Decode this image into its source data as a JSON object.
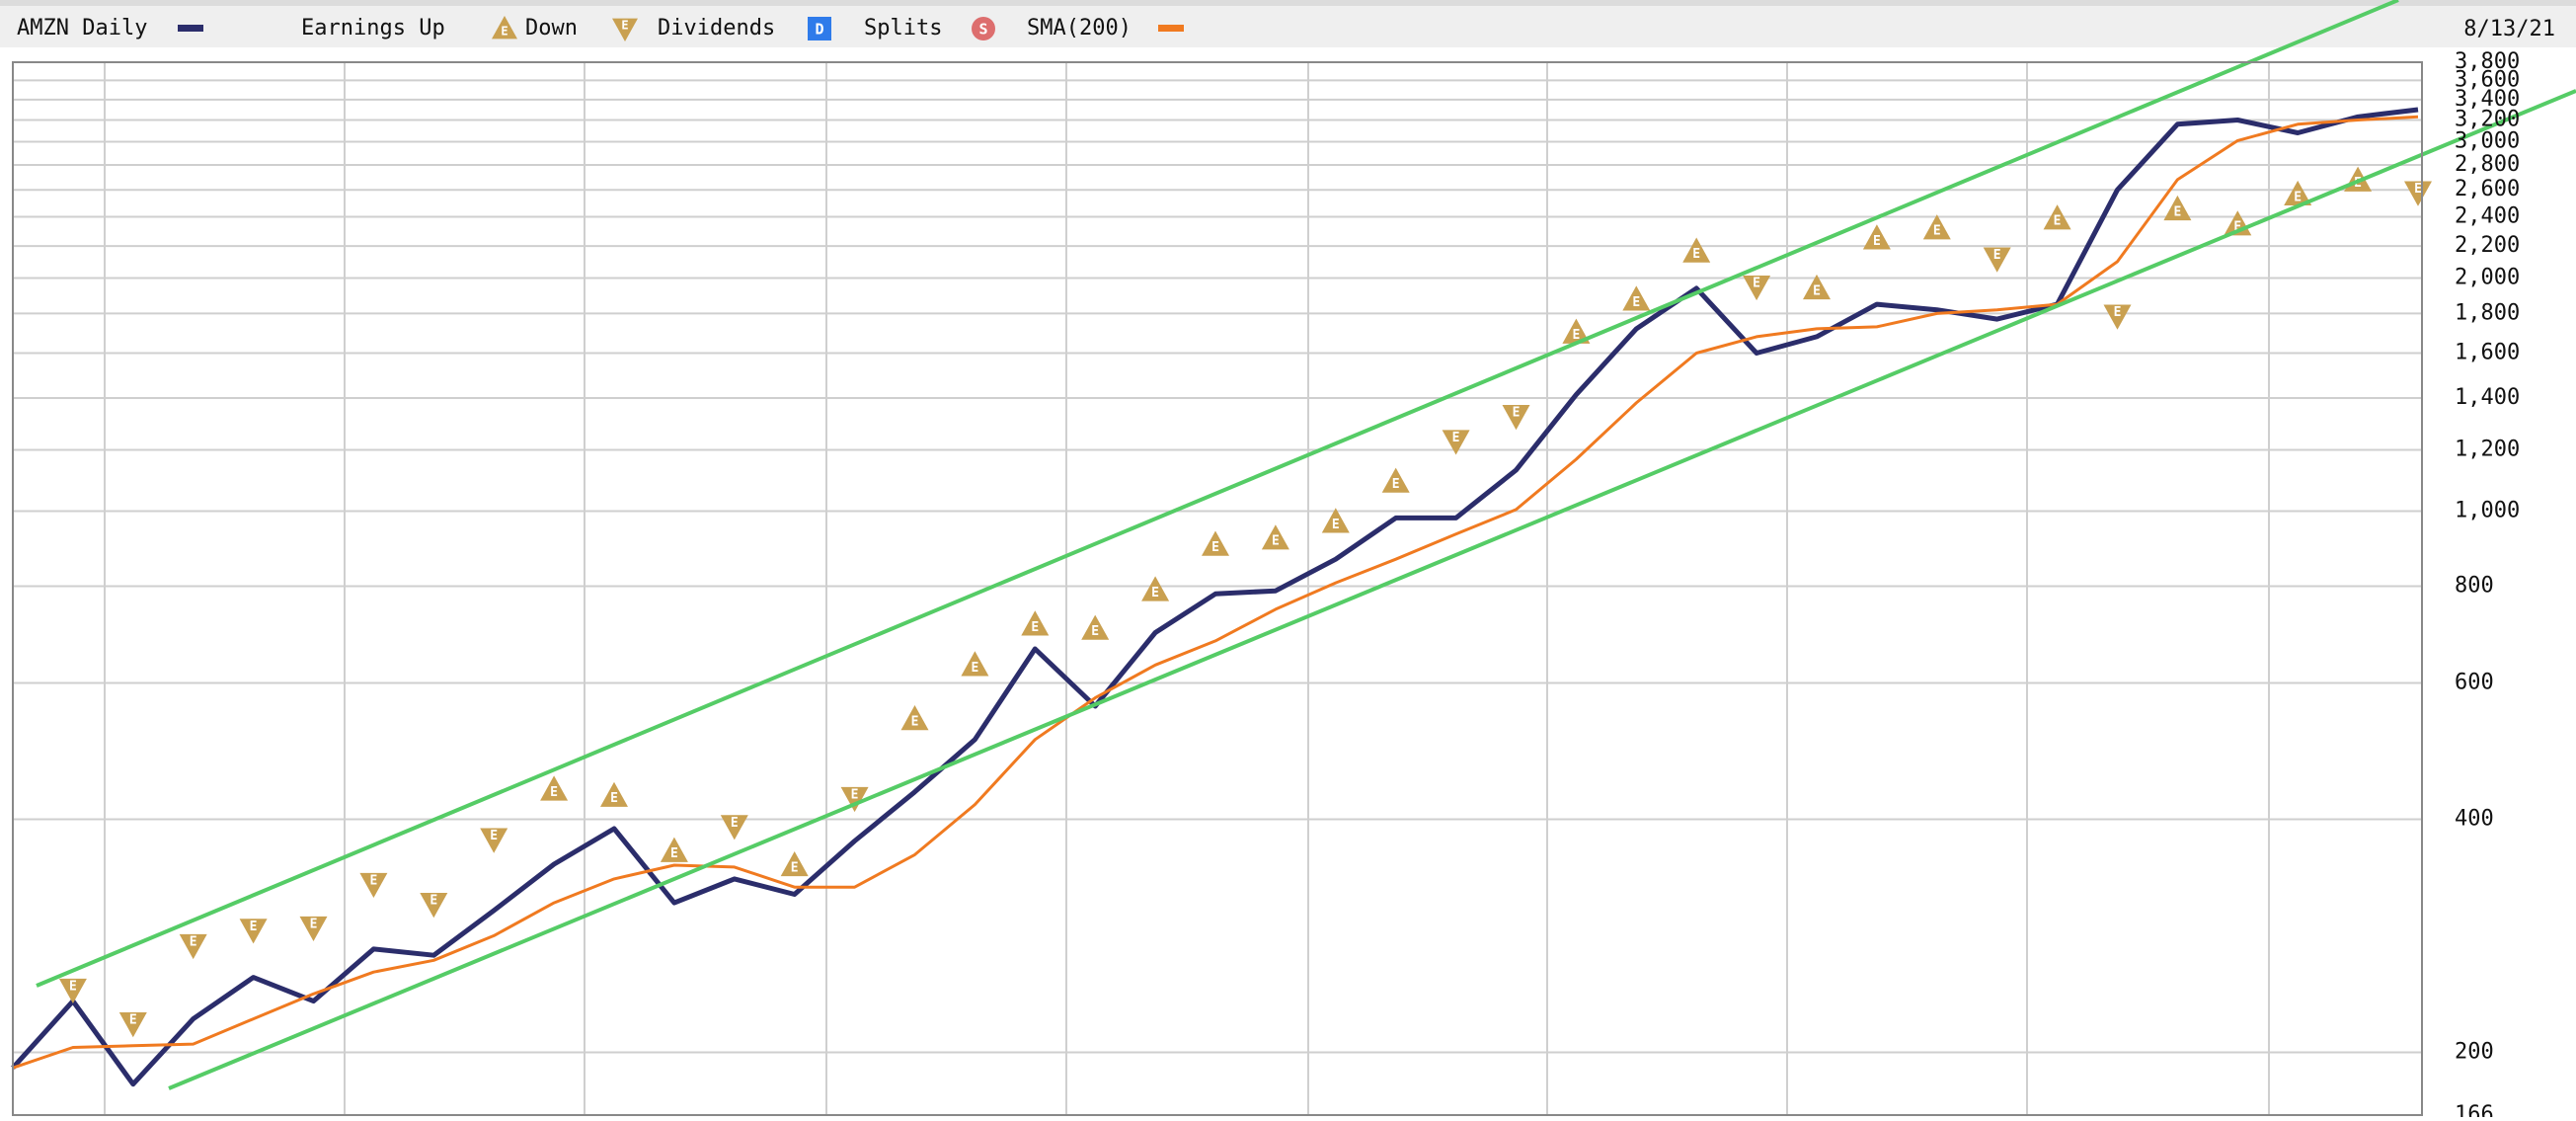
{
  "chart_data": {
    "type": "line",
    "date": "8/13/21",
    "log_scale": true,
    "grid": true,
    "ylim": [
      166,
      3800
    ],
    "yticks": [
      166,
      200,
      400,
      600,
      800,
      {
        "value": 1000,
        "label": "1,000"
      },
      {
        "value": 1200,
        "label": "1,200"
      },
      {
        "value": 1400,
        "label": "1,400"
      },
      {
        "value": 1600,
        "label": "1,600"
      },
      {
        "value": 1800,
        "label": "1,800"
      },
      {
        "value": 2000,
        "label": "2,000"
      },
      {
        "value": 2200,
        "label": "2,200"
      },
      {
        "value": 2400,
        "label": "2,400"
      },
      {
        "value": 2600,
        "label": "2,600"
      },
      {
        "value": 2800,
        "label": "2,800"
      },
      {
        "value": 3000,
        "label": "3,000"
      },
      {
        "value": 3200,
        "label": "3,200"
      },
      {
        "value": 3400,
        "label": "3,400"
      },
      {
        "value": 3600,
        "label": "3,600"
      },
      {
        "value": 3800,
        "label": "3,800"
      }
    ],
    "series": [
      {
        "name": "AMZN Daily",
        "color": "#2b2d6b",
        "mode": "line",
        "values": [
          191,
          233,
          182,
          221,
          250,
          233,
          272,
          267,
          305,
          350,
          389,
          312,
          335,
          320,
          375,
          434,
          507,
          664,
          560,
          697,
          782,
          789,
          867,
          980,
          980,
          1130,
          1414,
          1720,
          1940,
          1600,
          1680,
          1850,
          1820,
          1770,
          1850,
          2600,
          3160,
          3200,
          3080,
          3230,
          3300
        ]
      },
      {
        "name": "Earnings Up",
        "color": "#c9a050",
        "mode": "up",
        "marker_label": "E",
        "values": [
          null,
          null,
          null,
          null,
          null,
          null,
          null,
          null,
          null,
          437,
          429,
          364,
          null,
          349,
          null,
          539,
          633,
          714,
          705,
          791,
          905,
          922,
          969,
          1092,
          null,
          null,
          1701,
          1876,
          2165,
          null,
          1940,
          2251,
          2319,
          null,
          2388,
          null,
          2454,
          2346,
          2565,
          2674,
          null
        ]
      },
      {
        "name": "Down",
        "color": "#c9a050",
        "mode": "down",
        "marker_label": "E",
        "values": [
          null,
          241,
          218,
          275,
          288,
          290,
          330,
          311,
          377,
          null,
          null,
          null,
          392,
          null,
          426,
          null,
          null,
          null,
          null,
          null,
          null,
          null,
          null,
          null,
          1232,
          1327,
          null,
          null,
          null,
          1950,
          null,
          null,
          null,
          2120,
          null,
          1788,
          null,
          null,
          null,
          null,
          2581
        ]
      },
      {
        "name": "SMA(200)",
        "color": "#f07a20",
        "mode": "line",
        "values": [
          191,
          203,
          204,
          205,
          221,
          238,
          254,
          263,
          283,
          312,
          335,
          349,
          347,
          327,
          327,
          360,
          418,
          507,
          574,
          633,
          680,
          747,
          808,
          867,
          934,
          1005,
          1167,
          1380,
          1600,
          1680,
          1720,
          1730,
          1800,
          1820,
          1850,
          2100,
          2680,
          3010,
          3160,
          3200,
          3230
        ]
      }
    ],
    "legend_extra": [
      {
        "name": "Dividends",
        "symbol": "D",
        "color": "#2f7bea"
      },
      {
        "name": "Splits",
        "symbol": "S",
        "color": "#dd6e6e"
      }
    ]
  }
}
